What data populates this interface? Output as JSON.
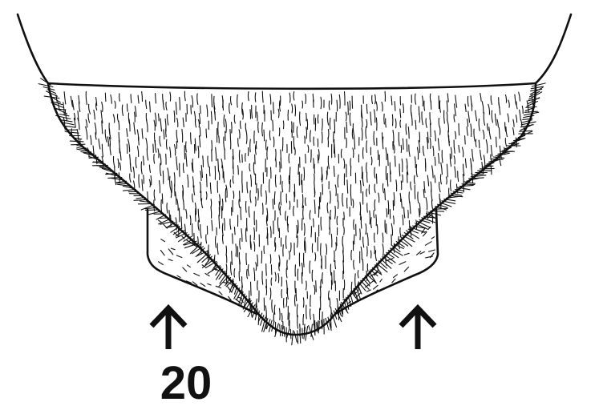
{
  "figure": {
    "number_label": "20",
    "ink_color": "#111111",
    "background_color": "#ffffff",
    "structure": "setose-plate-with-paired-lateral-lobes",
    "arrow_icons": [
      "up-arrow-icon",
      "up-arrow-icon"
    ]
  }
}
